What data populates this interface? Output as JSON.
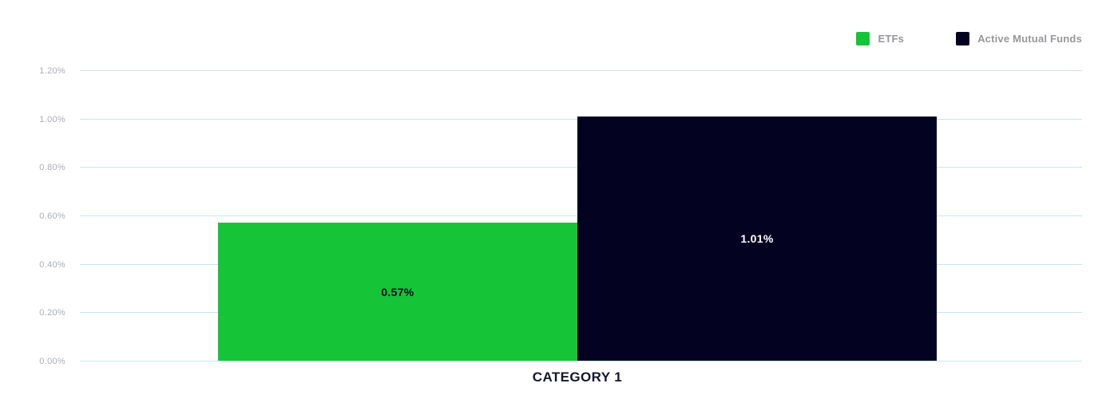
{
  "chart_data": {
    "type": "bar",
    "title": "",
    "xlabel": "",
    "ylabel": "",
    "categories": [
      "CATEGORY 1"
    ],
    "series": [
      {
        "name": "ETFs",
        "values": [
          0.57
        ],
        "data_labels": [
          "0.57%"
        ],
        "color": "#16C437",
        "label_color": "#0A0B26"
      },
      {
        "name": "Active Mutual Funds",
        "values": [
          1.01
        ],
        "data_labels": [
          "1.01%"
        ],
        "color": "#030321",
        "label_color": "#FFFFFF"
      }
    ],
    "ylim": [
      0,
      1.2
    ],
    "yunit": "%",
    "ytick_labels": [
      "1.20%",
      "1.00%",
      "0.80%",
      "0.60%",
      "0.40%",
      "0.20%",
      "0.00%"
    ],
    "grid": true,
    "gridline_color": "#C7E6F5",
    "legend_position": "top-right"
  },
  "colors": {
    "background": "#FFFFFF",
    "tick_label": "#A8AEB8",
    "legend_label": "#97979C",
    "category_label": "#14152F"
  }
}
